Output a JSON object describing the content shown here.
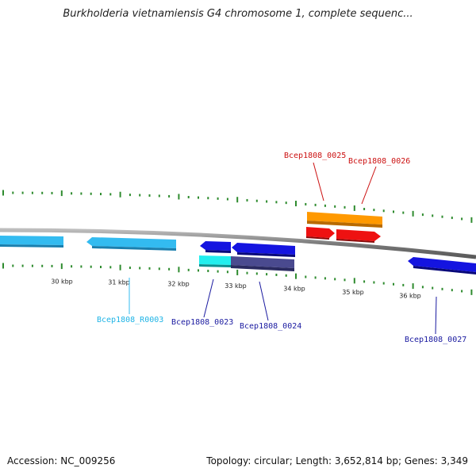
{
  "title": "Burkholderia vietnamiensis G4 chromosome 1, complete sequenc...",
  "footer": {
    "accession_label": "Accession:",
    "accession": "NC_009256",
    "topology_label": "Topology:",
    "topology": "circular",
    "length_label": "Length:",
    "length": "3,652,814 bp",
    "genes_label": "Genes:",
    "genes": "3,349"
  },
  "scale_labels": [
    "30 kbp",
    "31 kbp",
    "32 kbp",
    "33 kbp",
    "34 kbp",
    "35 kbp",
    "36 kbp"
  ],
  "colors": {
    "backbone": "#8a8a8a",
    "tick": "#2e8b2e",
    "light_blue": "#33bbf0",
    "cyan": "#22eeee",
    "dark_blue": "#1010dd",
    "slate": "#4a4a8f",
    "orange": "#ff9900",
    "red": "#ee1111"
  },
  "genes": [
    {
      "id": "Bcep1808_R0003",
      "label": "Bcep1808_R0003",
      "color": "#1fb4e6"
    },
    {
      "id": "Bcep1808_0023",
      "label": "Bcep1808_0023",
      "color": "#1a1aa0"
    },
    {
      "id": "Bcep1808_0024",
      "label": "Bcep1808_0024",
      "color": "#1a1aa0"
    },
    {
      "id": "Bcep1808_0025",
      "label": "Bcep1808_0025",
      "color": "#cc1111"
    },
    {
      "id": "Bcep1808_0026",
      "label": "Bcep1808_0026",
      "color": "#cc1111"
    },
    {
      "id": "Bcep1808_0027",
      "label": "Bcep1808_0027",
      "color": "#1a1aa0"
    }
  ]
}
